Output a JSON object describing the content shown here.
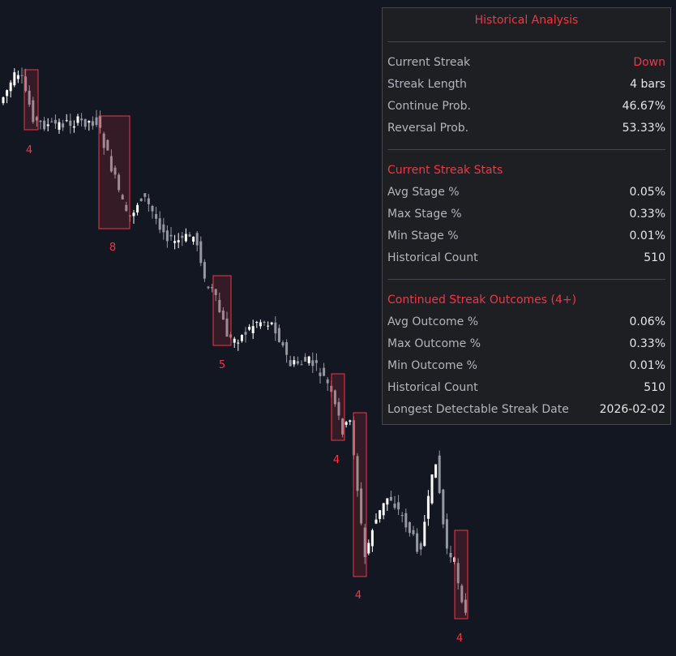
{
  "panel": {
    "title": "Historical Analysis",
    "rows": [
      {
        "label": "Current Streak",
        "value": "Down"
      },
      {
        "label": "Streak Length",
        "value": "4 bars"
      },
      {
        "label": "Continue Prob.",
        "value": "46.67%"
      },
      {
        "label": "Reversal Prob.",
        "value": "53.33%"
      }
    ],
    "section1": {
      "title": "Current Streak Stats",
      "rows": [
        {
          "label": "Avg Stage %",
          "value": "0.05%"
        },
        {
          "label": "Max Stage %",
          "value": "0.33%"
        },
        {
          "label": "Min Stage %",
          "value": "0.01%"
        },
        {
          "label": "Historical Count",
          "value": "510"
        }
      ]
    },
    "section2": {
      "title": "Continued Streak Outcomes (4+)",
      "rows": [
        {
          "label": "Avg Outcome %",
          "value": "0.06%"
        },
        {
          "label": "Max Outcome %",
          "value": "0.33%"
        },
        {
          "label": "Min Outcome %",
          "value": "0.01%"
        },
        {
          "label": "Historical Count",
          "value": "510"
        },
        {
          "label": "Longest Detectable Streak Date",
          "value": "2026-02-02"
        }
      ]
    }
  },
  "streaks": [
    "4",
    "8",
    "5",
    "4",
    "4",
    "4"
  ]
}
